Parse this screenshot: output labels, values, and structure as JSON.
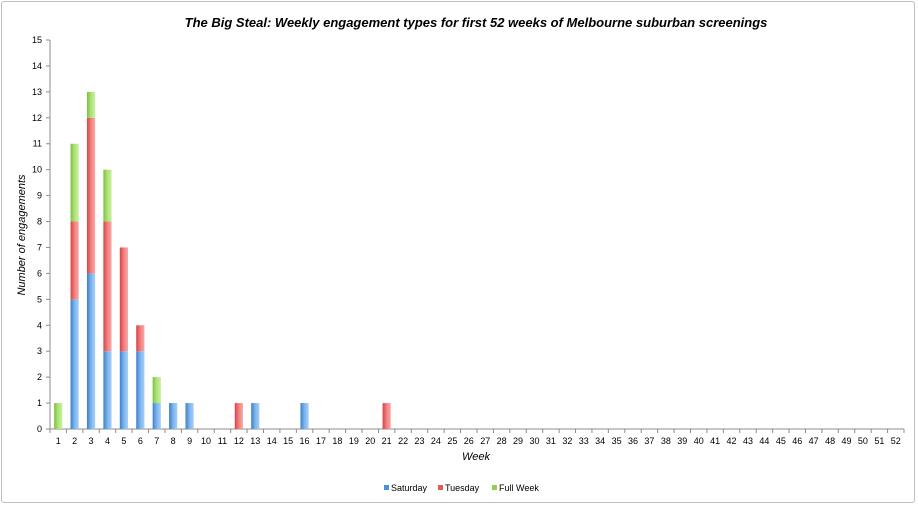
{
  "chart_data": {
    "type": "bar",
    "stacked": true,
    "title": "The Big Steal: Weekly engagement types for first 52 weeks of Melbourne suburban screenings",
    "xlabel": "Week",
    "ylabel": "Number of engagements",
    "ylim": [
      0,
      15
    ],
    "yticks": [
      0,
      1,
      2,
      3,
      4,
      5,
      6,
      7,
      8,
      9,
      10,
      11,
      12,
      13,
      14,
      15
    ],
    "categories": [
      "1",
      "2",
      "3",
      "4",
      "5",
      "6",
      "7",
      "8",
      "9",
      "10",
      "11",
      "12",
      "13",
      "14",
      "15",
      "16",
      "17",
      "18",
      "19",
      "20",
      "21",
      "22",
      "23",
      "24",
      "25",
      "26",
      "27",
      "28",
      "29",
      "30",
      "31",
      "32",
      "33",
      "34",
      "35",
      "36",
      "37",
      "38",
      "39",
      "40",
      "41",
      "42",
      "43",
      "44",
      "45",
      "46",
      "47",
      "48",
      "49",
      "50",
      "51",
      "52"
    ],
    "series": [
      {
        "name": "Saturday",
        "color": "#4a90d9",
        "values": [
          0,
          5,
          6,
          3,
          3,
          3,
          1,
          1,
          1,
          0,
          0,
          0,
          1,
          0,
          0,
          1,
          0,
          0,
          0,
          0,
          0,
          0,
          0,
          0,
          0,
          0,
          0,
          0,
          0,
          0,
          0,
          0,
          0,
          0,
          0,
          0,
          0,
          0,
          0,
          0,
          0,
          0,
          0,
          0,
          0,
          0,
          0,
          0,
          0,
          0,
          0,
          0
        ]
      },
      {
        "name": "Tuesday",
        "color": "#e05a5a",
        "values": [
          0,
          3,
          6,
          5,
          4,
          1,
          0,
          0,
          0,
          0,
          0,
          1,
          0,
          0,
          0,
          0,
          0,
          0,
          0,
          0,
          1,
          0,
          0,
          0,
          0,
          0,
          0,
          0,
          0,
          0,
          0,
          0,
          0,
          0,
          0,
          0,
          0,
          0,
          0,
          0,
          0,
          0,
          0,
          0,
          0,
          0,
          0,
          0,
          0,
          0,
          0,
          0
        ]
      },
      {
        "name": "Full Week",
        "color": "#8fd14f",
        "values": [
          1,
          3,
          1,
          2,
          0,
          0,
          1,
          0,
          0,
          0,
          0,
          0,
          0,
          0,
          0,
          0,
          0,
          0,
          0,
          0,
          0,
          0,
          0,
          0,
          0,
          0,
          0,
          0,
          0,
          0,
          0,
          0,
          0,
          0,
          0,
          0,
          0,
          0,
          0,
          0,
          0,
          0,
          0,
          0,
          0,
          0,
          0,
          0,
          0,
          0,
          0,
          0
        ]
      }
    ],
    "grid": false,
    "legend": "bottom"
  }
}
